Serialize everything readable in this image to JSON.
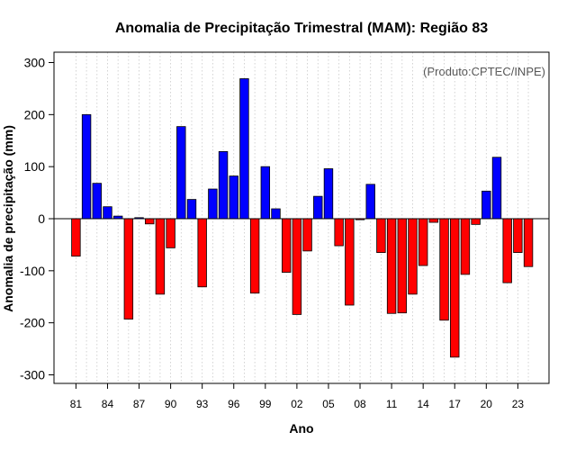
{
  "chart_data": {
    "type": "bar",
    "title": "Anomalia de Precipitação Trimestral (MAM): Região 83",
    "xlabel": "Ano",
    "ylabel": "Anomalia de precipitação (mm)",
    "annotation": "(Produto:CPTEC/INPE)",
    "ylim": [
      -315,
      320
    ],
    "yticks": [
      -300,
      -200,
      -100,
      0,
      100,
      200,
      300
    ],
    "xtick_labels": [
      "81",
      "84",
      "87",
      "90",
      "93",
      "96",
      "99",
      "02",
      "05",
      "08",
      "11",
      "14",
      "17",
      "20",
      "23"
    ],
    "xtick_every": 3,
    "grid": "vertical dotted",
    "colors": {
      "positive": "#0000ff",
      "negative": "#ff0000"
    },
    "categories": [
      "1981",
      "1982",
      "1983",
      "1984",
      "1985",
      "1986",
      "1987",
      "1988",
      "1989",
      "1990",
      "1991",
      "1992",
      "1993",
      "1994",
      "1995",
      "1996",
      "1997",
      "1998",
      "1999",
      "2000",
      "2001",
      "2002",
      "2003",
      "2004",
      "2005",
      "2006",
      "2007",
      "2008",
      "2009",
      "2010",
      "2011",
      "2012",
      "2013",
      "2014",
      "2015",
      "2016",
      "2017",
      "2018",
      "2019",
      "2020",
      "2021",
      "2022",
      "2023",
      "2024"
    ],
    "values": [
      -72,
      200,
      68,
      23,
      5,
      -193,
      2,
      -10,
      -145,
      -56,
      177,
      37,
      -131,
      57,
      129,
      82,
      269,
      -143,
      100,
      19,
      -103,
      -184,
      -62,
      43,
      96,
      -52,
      -166,
      -2,
      66,
      -65,
      -182,
      -181,
      -145,
      -90,
      -7,
      -195,
      -266,
      -107,
      -11,
      53,
      118,
      -123,
      -65,
      -92
    ]
  }
}
